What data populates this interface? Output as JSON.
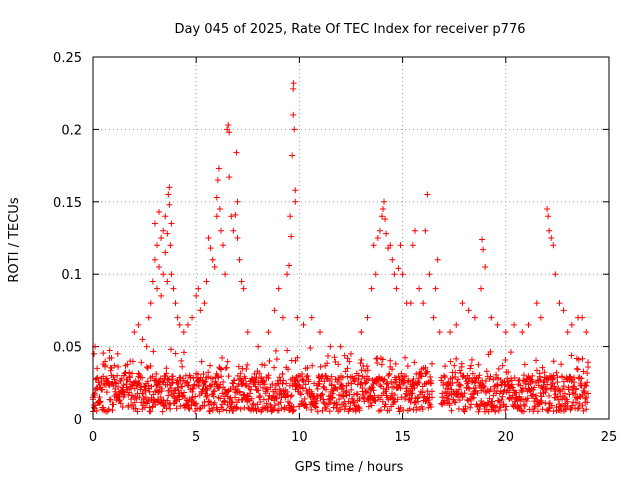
{
  "chart_data": {
    "type": "scatter",
    "title": "Day 045 of 2025, Rate Of TEC Index for receiver p776",
    "xlabel": "GPS time / hours",
    "ylabel": "ROTI / TECUs",
    "xlim": [
      0,
      25
    ],
    "ylim": [
      0,
      0.25
    ],
    "xticks": [
      0,
      5,
      10,
      15,
      20,
      25
    ],
    "xtick_labels": [
      "0",
      "5",
      "10",
      "15",
      "20",
      "25"
    ],
    "yticks": [
      0,
      0.05,
      0.1,
      0.15,
      0.2,
      0.25
    ],
    "ytick_labels": [
      "0",
      "0.05",
      "0.1",
      "0.15",
      "0.2",
      "0.25"
    ],
    "grid": true,
    "marker": "+",
    "series": [
      {
        "name": "ROTI",
        "color": "#ff0000",
        "points": [
          [
            0.05,
            0.045
          ],
          [
            0.1,
            0.05
          ],
          [
            0.2,
            0.035
          ],
          [
            0.5,
            0.038
          ],
          [
            0.8,
            0.042
          ],
          [
            0.9,
            0.03
          ],
          [
            1.2,
            0.045
          ],
          [
            1.5,
            0.03
          ],
          [
            1.8,
            0.04
          ],
          [
            2.0,
            0.06
          ],
          [
            2.2,
            0.065
          ],
          [
            2.4,
            0.055
          ],
          [
            2.6,
            0.05
          ],
          [
            2.7,
            0.07
          ],
          [
            2.8,
            0.08
          ],
          [
            2.9,
            0.095
          ],
          [
            3.0,
            0.11
          ],
          [
            3.0,
            0.135
          ],
          [
            3.1,
            0.12
          ],
          [
            3.1,
            0.09
          ],
          [
            3.2,
            0.143
          ],
          [
            3.2,
            0.105
          ],
          [
            3.3,
            0.125
          ],
          [
            3.3,
            0.085
          ],
          [
            3.4,
            0.1
          ],
          [
            3.4,
            0.13
          ],
          [
            3.5,
            0.14
          ],
          [
            3.5,
            0.115
          ],
          [
            3.6,
            0.128
          ],
          [
            3.6,
            0.095
          ],
          [
            3.65,
            0.155
          ],
          [
            3.7,
            0.16
          ],
          [
            3.7,
            0.148
          ],
          [
            3.75,
            0.12
          ],
          [
            3.8,
            0.135
          ],
          [
            3.8,
            0.1
          ],
          [
            3.9,
            0.09
          ],
          [
            4.0,
            0.08
          ],
          [
            4.1,
            0.07
          ],
          [
            4.2,
            0.065
          ],
          [
            4.4,
            0.06
          ],
          [
            4.6,
            0.065
          ],
          [
            4.8,
            0.07
          ],
          [
            5.0,
            0.085
          ],
          [
            5.1,
            0.09
          ],
          [
            5.2,
            0.075
          ],
          [
            5.4,
            0.08
          ],
          [
            5.5,
            0.095
          ],
          [
            5.6,
            0.125
          ],
          [
            5.7,
            0.118
          ],
          [
            5.8,
            0.11
          ],
          [
            5.9,
            0.105
          ],
          [
            6.0,
            0.14
          ],
          [
            6.0,
            0.153
          ],
          [
            6.05,
            0.165
          ],
          [
            6.1,
            0.173
          ],
          [
            6.15,
            0.145
          ],
          [
            6.2,
            0.13
          ],
          [
            6.3,
            0.12
          ],
          [
            6.4,
            0.1
          ],
          [
            6.5,
            0.2
          ],
          [
            6.55,
            0.203
          ],
          [
            6.6,
            0.198
          ],
          [
            6.6,
            0.167
          ],
          [
            6.7,
            0.14
          ],
          [
            6.8,
            0.13
          ],
          [
            6.9,
            0.141
          ],
          [
            6.95,
            0.184
          ],
          [
            7.0,
            0.15
          ],
          [
            7.0,
            0.125
          ],
          [
            7.1,
            0.11
          ],
          [
            7.2,
            0.095
          ],
          [
            7.3,
            0.09
          ],
          [
            7.5,
            0.06
          ],
          [
            8.0,
            0.05
          ],
          [
            8.5,
            0.06
          ],
          [
            8.8,
            0.075
          ],
          [
            9.0,
            0.09
          ],
          [
            9.2,
            0.07
          ],
          [
            9.4,
            0.1
          ],
          [
            9.5,
            0.106
          ],
          [
            9.55,
            0.14
          ],
          [
            9.6,
            0.126
          ],
          [
            9.65,
            0.182
          ],
          [
            9.7,
            0.21
          ],
          [
            9.75,
            0.2
          ],
          [
            9.7,
            0.228
          ],
          [
            9.72,
            0.232
          ],
          [
            9.8,
            0.158
          ],
          [
            9.8,
            0.15
          ],
          [
            9.9,
            0.07
          ],
          [
            10.2,
            0.065
          ],
          [
            10.6,
            0.07
          ],
          [
            11.0,
            0.06
          ],
          [
            11.5,
            0.05
          ],
          [
            12.0,
            0.05
          ],
          [
            12.5,
            0.045
          ],
          [
            13.0,
            0.06
          ],
          [
            13.3,
            0.07
          ],
          [
            13.5,
            0.09
          ],
          [
            13.6,
            0.12
          ],
          [
            13.7,
            0.1
          ],
          [
            13.8,
            0.125
          ],
          [
            13.9,
            0.13
          ],
          [
            14.0,
            0.14
          ],
          [
            14.05,
            0.145
          ],
          [
            14.1,
            0.15
          ],
          [
            14.15,
            0.138
          ],
          [
            14.2,
            0.128
          ],
          [
            14.3,
            0.118
          ],
          [
            14.4,
            0.12
          ],
          [
            14.5,
            0.11
          ],
          [
            14.6,
            0.1
          ],
          [
            14.7,
            0.09
          ],
          [
            14.8,
            0.104
          ],
          [
            14.9,
            0.12
          ],
          [
            15.0,
            0.1
          ],
          [
            15.2,
            0.08
          ],
          [
            15.4,
            0.08
          ],
          [
            15.5,
            0.12
          ],
          [
            15.6,
            0.13
          ],
          [
            15.8,
            0.09
          ],
          [
            16.0,
            0.08
          ],
          [
            16.1,
            0.13
          ],
          [
            16.2,
            0.155
          ],
          [
            16.3,
            0.1
          ],
          [
            16.5,
            0.07
          ],
          [
            16.6,
            0.09
          ],
          [
            16.7,
            0.11
          ],
          [
            16.8,
            0.06
          ],
          [
            17.3,
            0.06
          ],
          [
            17.6,
            0.065
          ],
          [
            17.9,
            0.08
          ],
          [
            18.2,
            0.075
          ],
          [
            18.5,
            0.07
          ],
          [
            18.8,
            0.09
          ],
          [
            18.85,
            0.124
          ],
          [
            18.9,
            0.117
          ],
          [
            19.0,
            0.105
          ],
          [
            19.3,
            0.07
          ],
          [
            19.6,
            0.065
          ],
          [
            20.0,
            0.06
          ],
          [
            20.4,
            0.065
          ],
          [
            20.8,
            0.06
          ],
          [
            21.1,
            0.065
          ],
          [
            21.5,
            0.08
          ],
          [
            21.7,
            0.07
          ],
          [
            22.0,
            0.145
          ],
          [
            22.05,
            0.14
          ],
          [
            22.1,
            0.13
          ],
          [
            22.2,
            0.125
          ],
          [
            22.3,
            0.12
          ],
          [
            22.4,
            0.1
          ],
          [
            22.6,
            0.08
          ],
          [
            22.8,
            0.075
          ],
          [
            23.0,
            0.06
          ],
          [
            23.2,
            0.065
          ],
          [
            23.5,
            0.07
          ],
          [
            23.7,
            0.07
          ],
          [
            23.9,
            0.06
          ]
        ],
        "baseline_band": {
          "ymin": 0.005,
          "ymax": 0.03,
          "gap_hours": [
            16.45,
            16.85
          ]
        }
      }
    ]
  }
}
